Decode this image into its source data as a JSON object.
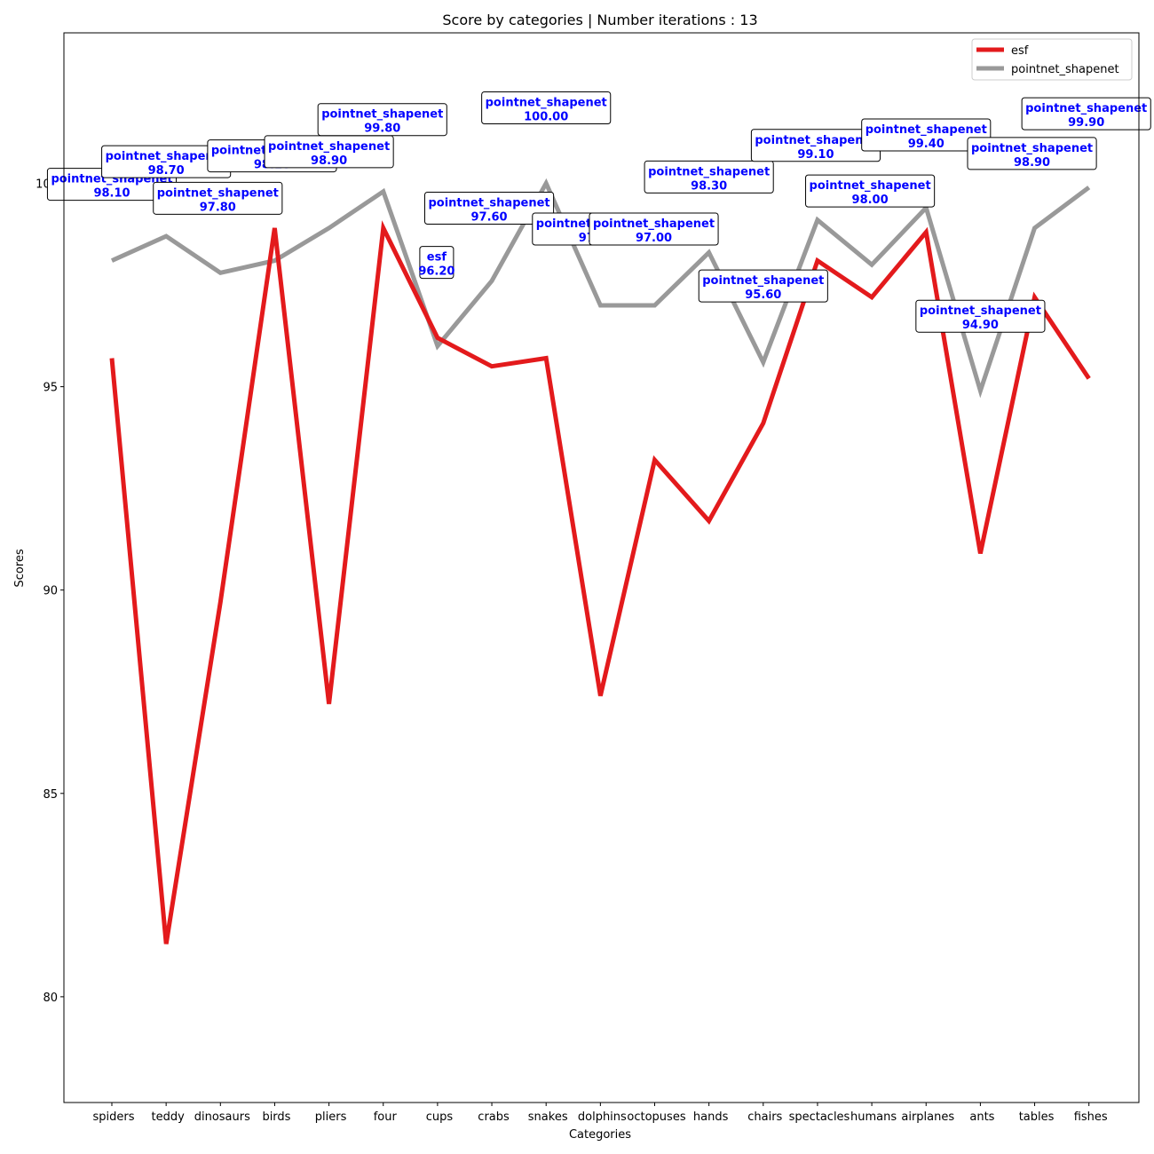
{
  "chart_data": {
    "type": "line",
    "title": "Score by categories | Number iterations : 13",
    "xlabel": "Categories",
    "ylabel": "Scores",
    "ylim": [
      77.4,
      103.7
    ],
    "yticks": [
      80,
      85,
      90,
      95,
      100
    ],
    "categories": [
      "spiders",
      "teddy",
      "dinosaurs",
      "birds",
      "pliers",
      "four",
      "cups",
      "crabs",
      "snakes",
      "dolphins",
      "octopuses",
      "hands",
      "chairs",
      "spectacles",
      "humans",
      "airplanes",
      "ants",
      "tables",
      "fishes"
    ],
    "series": [
      {
        "name": "esf",
        "color": "#e31a1c",
        "values": [
          95.7,
          81.3,
          89.7,
          98.9,
          87.2,
          98.9,
          96.2,
          95.5,
          95.7,
          87.4,
          93.2,
          91.7,
          94.1,
          98.1,
          97.2,
          98.8,
          90.9,
          97.2,
          95.2
        ]
      },
      {
        "name": "pointnet_shapenet",
        "color": "#999999",
        "values": [
          98.1,
          98.7,
          97.8,
          98.1,
          98.9,
          99.8,
          96.0,
          97.6,
          100.0,
          97.0,
          97.0,
          98.3,
          95.6,
          99.1,
          98.0,
          99.4,
          94.9,
          98.9,
          99.9
        ]
      }
    ],
    "annotations": [
      {
        "series": "pointnet_shapenet",
        "value": "98.10",
        "ci": 0,
        "ox": 0,
        "oy": 86
      },
      {
        "series": "pointnet_shapenet",
        "value": "98.70",
        "ci": 1,
        "ox": 0,
        "oy": 84
      },
      {
        "series": "pointnet_shapenet",
        "value": "97.80",
        "ci": 2,
        "ox": -3,
        "oy": 84
      },
      {
        "series": "pointnet_shapenet",
        "value": "98.10",
        "ci": 3,
        "ox": -3,
        "oy": 118
      },
      {
        "series": "pointnet_shapenet",
        "value": "98.90",
        "ci": 4,
        "ox": 0,
        "oy": 86
      },
      {
        "series": "pointnet_shapenet",
        "value": "99.80",
        "ci": 5,
        "ox": -1,
        "oy": 81
      },
      {
        "series": "esf",
        "value": "96.20",
        "ci": 6,
        "ox": -1,
        "oy": 85
      },
      {
        "series": "pointnet_shapenet",
        "value": "97.60",
        "ci": 7,
        "ox": -3,
        "oy": 82
      },
      {
        "series": "pointnet_shapenet",
        "value": "100.00",
        "ci": 8,
        "ox": 0,
        "oy": 85
      },
      {
        "series": "pointnet_shapenet",
        "value": "97.00",
        "ci": 9,
        "ox": -4,
        "oy": 86
      },
      {
        "series": "pointnet_shapenet",
        "value": "97.00",
        "ci": 10,
        "ox": -1,
        "oy": 86
      },
      {
        "series": "pointnet_shapenet",
        "value": "98.30",
        "ci": 11,
        "ox": 0,
        "oy": 85
      },
      {
        "series": "pointnet_shapenet",
        "value": "95.60",
        "ci": 12,
        "ox": 0,
        "oy": 86
      },
      {
        "series": "pointnet_shapenet",
        "value": "99.10",
        "ci": 13,
        "ox": -2,
        "oy": 84
      },
      {
        "series": "pointnet_shapenet",
        "value": "98.00",
        "ci": 14,
        "ox": -2,
        "oy": 83
      },
      {
        "series": "pointnet_shapenet",
        "value": "99.40",
        "ci": 15,
        "ox": 0,
        "oy": 82
      },
      {
        "series": "pointnet_shapenet",
        "value": "94.90",
        "ci": 16,
        "ox": 0,
        "oy": 84
      },
      {
        "series": "pointnet_shapenet",
        "value": "98.90",
        "ci": 17,
        "ox": -3,
        "oy": 84
      },
      {
        "series": "pointnet_shapenet",
        "value": "99.90",
        "ci": 18,
        "ox": -3,
        "oy": 83
      }
    ],
    "grid": false,
    "legend_position": "top-right"
  }
}
